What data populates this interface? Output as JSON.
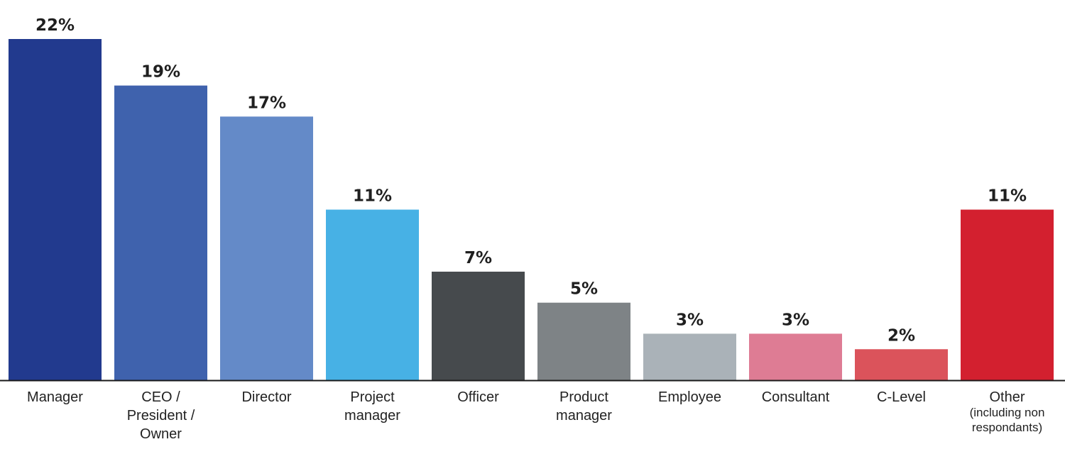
{
  "chart_data": {
    "type": "bar",
    "title": "",
    "xlabel": "",
    "ylabel": "",
    "ylim": [
      0,
      22
    ],
    "grid": false,
    "legend": "none",
    "value_format": "percent",
    "categories": [
      [
        "Manager"
      ],
      [
        "CEO /",
        "President /",
        "Owner"
      ],
      [
        "Director"
      ],
      [
        "Project",
        "manager"
      ],
      [
        "Officer"
      ],
      [
        "Product",
        "manager"
      ],
      [
        "Employee"
      ],
      [
        "Consultant"
      ],
      [
        "C-Level"
      ],
      [
        "Other",
        "(including non",
        "respondants)"
      ]
    ],
    "values": [
      22,
      19,
      17,
      11,
      7,
      5,
      3,
      3,
      2,
      11
    ],
    "value_labels": [
      "22%",
      "19%",
      "17%",
      "11%",
      "7%",
      "5%",
      "3%",
      "3%",
      "2%",
      "11%"
    ],
    "colors": [
      "#223a8e",
      "#3f62ad",
      "#648ac8",
      "#47b1e5",
      "#464a4d",
      "#7e8386",
      "#aab2b8",
      "#de7c94",
      "#db535b",
      "#d3202f"
    ],
    "axis_color": "#1a1a1a"
  }
}
